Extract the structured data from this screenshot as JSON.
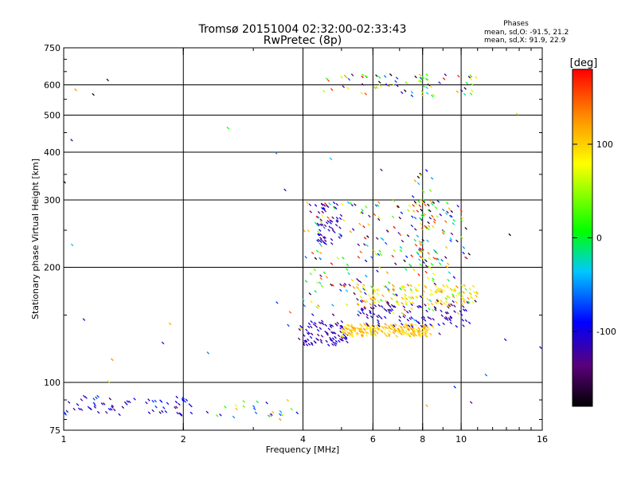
{
  "chart_data": {
    "type": "scatter",
    "title": "Tromsø 20151004 02:32:00-02:33:43",
    "subtitle": "RwPretec (8p)",
    "stats": {
      "heading": "Phases",
      "line_o": "mean, sd,O: -91.5, 21.2",
      "line_x": "mean, sd,X:  91.9, 22.9"
    },
    "xlabel": "Frequency [MHz]",
    "ylabel": "Stationary phase Virtual Height [km]",
    "x_scale": "log",
    "y_scale": "log",
    "xlim": [
      1,
      16
    ],
    "ylim": [
      75,
      750
    ],
    "x_ticks": [
      1,
      2,
      4,
      6,
      8,
      10,
      16
    ],
    "y_ticks": [
      75,
      100,
      200,
      300,
      400,
      500,
      600,
      750
    ],
    "x_gridlines": [
      2,
      4,
      6,
      8,
      10
    ],
    "y_gridlines": [
      100,
      200,
      300,
      400,
      500,
      600
    ],
    "colorbar": {
      "label": "[deg]",
      "range": [
        -180,
        180
      ],
      "ticks": [
        100,
        0,
        -100
      ]
    },
    "clusters": [
      {
        "f": [
          1.0,
          2.1
        ],
        "h": [
          82,
          92
        ],
        "phase": [
          -150,
          -70
        ],
        "n": 70
      },
      {
        "f": [
          2.2,
          3.9
        ],
        "h": [
          80,
          90
        ],
        "phase": [
          -120,
          140
        ],
        "n": 25
      },
      {
        "f": [
          3.9,
          5.2
        ],
        "h": [
          125,
          145
        ],
        "phase": [
          -140,
          -90
        ],
        "n": 90
      },
      {
        "f": [
          4.3,
          5.0
        ],
        "h": [
          230,
          295
        ],
        "phase": [
          -140,
          -90
        ],
        "n": 55
      },
      {
        "f": [
          5.0,
          8.5
        ],
        "h": [
          132,
          142
        ],
        "phase": [
          80,
          130
        ],
        "n": 200
      },
      {
        "f": [
          5.5,
          10.5
        ],
        "h": [
          140,
          160
        ],
        "phase": [
          -130,
          -90
        ],
        "n": 100
      },
      {
        "f": [
          5.5,
          11.0
        ],
        "h": [
          160,
          180
        ],
        "phase": [
          60,
          130
        ],
        "n": 130
      },
      {
        "f": [
          4.0,
          10.5
        ],
        "h": [
          150,
          300
        ],
        "phase": [
          -180,
          180
        ],
        "n": 280
      },
      {
        "f": [
          4.5,
          11.0
        ],
        "h": [
          560,
          640
        ],
        "phase": [
          -180,
          180
        ],
        "n": 70
      },
      {
        "f": [
          7.5,
          8.6
        ],
        "h": [
          200,
          360
        ],
        "phase": [
          -180,
          180
        ],
        "n": 45
      },
      {
        "f": [
          1.0,
          16.0
        ],
        "h": [
          80,
          700
        ],
        "phase": [
          -180,
          180
        ],
        "n": 45
      }
    ]
  }
}
